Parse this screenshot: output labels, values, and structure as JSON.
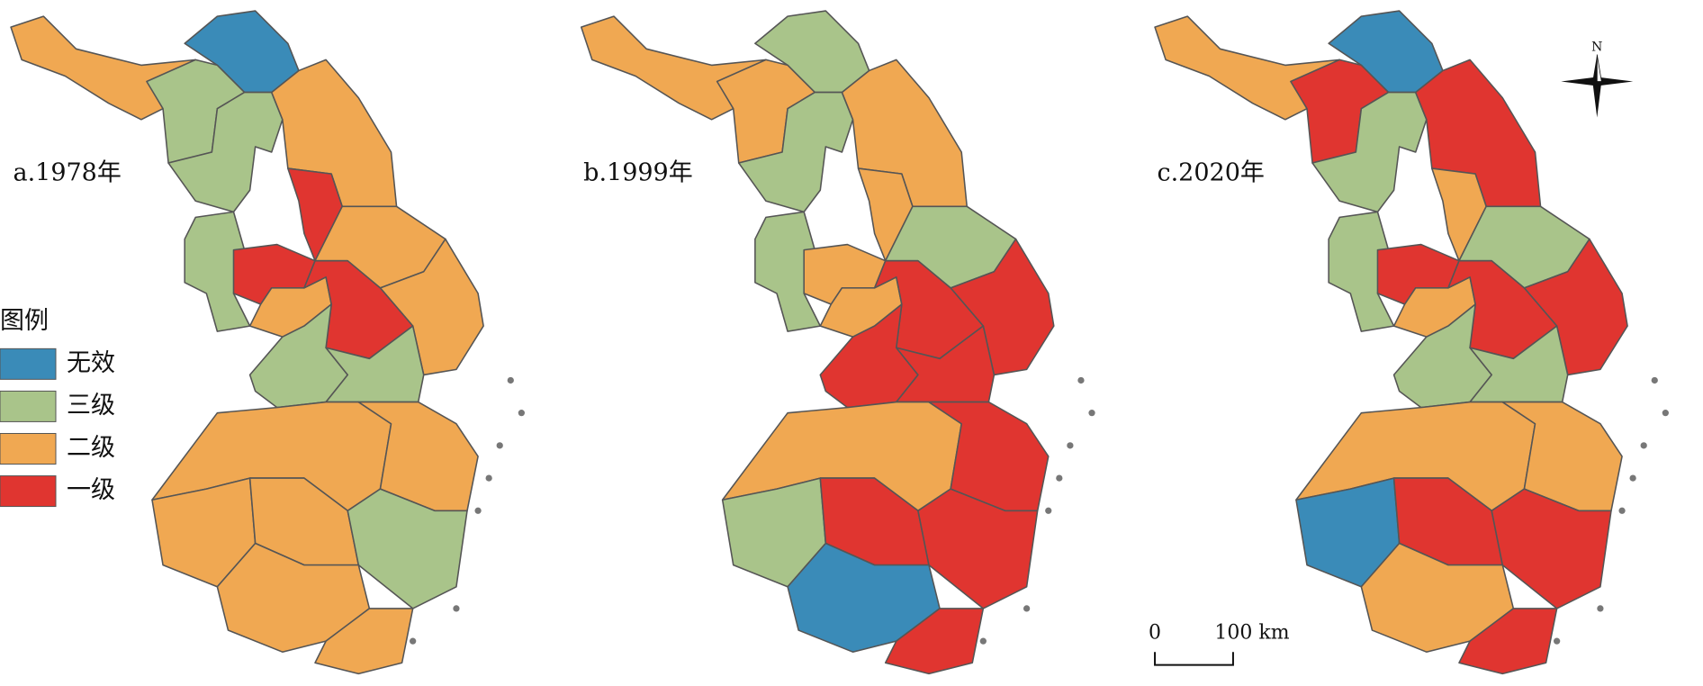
{
  "panels": [
    {
      "label": "a.1978年"
    },
    {
      "label": "b.1999年"
    },
    {
      "label": "c.2020年"
    }
  ],
  "legend": {
    "title": "图例",
    "items": [
      "无效",
      "三级",
      "二级",
      "一级"
    ]
  },
  "north": "N",
  "scale": {
    "start": "0",
    "end": "100 km"
  }
}
